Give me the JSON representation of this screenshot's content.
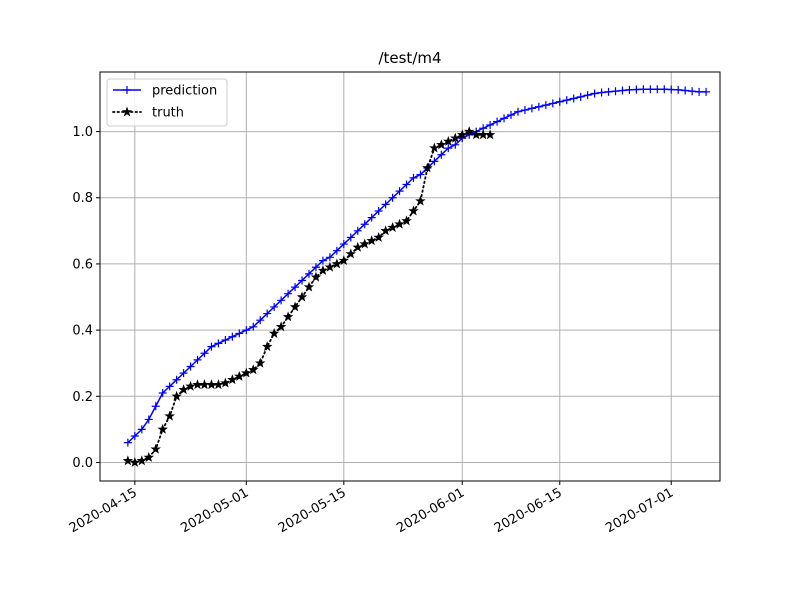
{
  "chart_data": {
    "type": "line",
    "title": "/test/m4",
    "xlabel": "",
    "ylabel": "",
    "x_type": "date",
    "xlim": [
      "2020-04-10",
      "2020-07-08"
    ],
    "ylim": [
      -0.056,
      1.18
    ],
    "x_ticks": [
      "2020-04-15",
      "2020-05-01",
      "2020-05-15",
      "2020-06-01",
      "2020-06-15",
      "2020-07-01"
    ],
    "y_ticks": [
      0.0,
      0.2,
      0.4,
      0.6,
      0.8,
      1.0
    ],
    "y_tick_labels": [
      "0.0",
      "0.2",
      "0.4",
      "0.6",
      "0.8",
      "1.0"
    ],
    "grid": true,
    "legend_position": "top-left",
    "series": [
      {
        "name": "prediction",
        "color": "#0000ff",
        "line_style": "solid",
        "marker": "plus",
        "x": [
          "2020-04-14",
          "2020-04-15",
          "2020-04-16",
          "2020-04-17",
          "2020-04-18",
          "2020-04-19",
          "2020-04-20",
          "2020-04-21",
          "2020-04-22",
          "2020-04-23",
          "2020-04-24",
          "2020-04-25",
          "2020-04-26",
          "2020-04-27",
          "2020-04-28",
          "2020-04-29",
          "2020-04-30",
          "2020-05-01",
          "2020-05-02",
          "2020-05-03",
          "2020-05-04",
          "2020-05-05",
          "2020-05-06",
          "2020-05-07",
          "2020-05-08",
          "2020-05-09",
          "2020-05-10",
          "2020-05-11",
          "2020-05-12",
          "2020-05-13",
          "2020-05-14",
          "2020-05-15",
          "2020-05-16",
          "2020-05-17",
          "2020-05-18",
          "2020-05-19",
          "2020-05-20",
          "2020-05-21",
          "2020-05-22",
          "2020-05-23",
          "2020-05-24",
          "2020-05-25",
          "2020-05-26",
          "2020-05-27",
          "2020-05-28",
          "2020-05-29",
          "2020-05-30",
          "2020-05-31",
          "2020-06-01",
          "2020-06-02",
          "2020-06-03",
          "2020-06-04",
          "2020-06-05",
          "2020-06-06",
          "2020-06-07",
          "2020-06-08",
          "2020-06-09",
          "2020-06-10",
          "2020-06-11",
          "2020-06-12",
          "2020-06-13",
          "2020-06-14",
          "2020-06-15",
          "2020-06-16",
          "2020-06-17",
          "2020-06-18",
          "2020-06-19",
          "2020-06-20",
          "2020-06-21",
          "2020-06-22",
          "2020-06-23",
          "2020-06-24",
          "2020-06-25",
          "2020-06-26",
          "2020-06-27",
          "2020-06-28",
          "2020-06-29",
          "2020-06-30",
          "2020-07-01",
          "2020-07-02",
          "2020-07-03",
          "2020-07-04",
          "2020-07-05",
          "2020-07-06"
        ],
        "values": [
          0.06,
          0.08,
          0.1,
          0.13,
          0.17,
          0.21,
          0.23,
          0.25,
          0.27,
          0.29,
          0.31,
          0.33,
          0.35,
          0.36,
          0.37,
          0.38,
          0.39,
          0.4,
          0.41,
          0.43,
          0.45,
          0.47,
          0.49,
          0.51,
          0.53,
          0.55,
          0.57,
          0.59,
          0.61,
          0.62,
          0.64,
          0.66,
          0.68,
          0.7,
          0.72,
          0.74,
          0.76,
          0.78,
          0.8,
          0.82,
          0.84,
          0.86,
          0.87,
          0.89,
          0.91,
          0.93,
          0.95,
          0.96,
          0.98,
          0.99,
          1.0,
          1.01,
          1.02,
          1.03,
          1.04,
          1.05,
          1.06,
          1.065,
          1.07,
          1.075,
          1.08,
          1.085,
          1.09,
          1.095,
          1.1,
          1.105,
          1.11,
          1.115,
          1.118,
          1.12,
          1.122,
          1.124,
          1.126,
          1.127,
          1.128,
          1.128,
          1.128,
          1.128,
          1.127,
          1.126,
          1.124,
          1.122,
          1.12,
          1.12
        ]
      },
      {
        "name": "truth",
        "color": "#000000",
        "line_style": "dotted",
        "marker": "star",
        "x": [
          "2020-04-14",
          "2020-04-15",
          "2020-04-16",
          "2020-04-17",
          "2020-04-18",
          "2020-04-19",
          "2020-04-20",
          "2020-04-21",
          "2020-04-22",
          "2020-04-23",
          "2020-04-24",
          "2020-04-25",
          "2020-04-26",
          "2020-04-27",
          "2020-04-28",
          "2020-04-29",
          "2020-04-30",
          "2020-05-01",
          "2020-05-02",
          "2020-05-03",
          "2020-05-04",
          "2020-05-05",
          "2020-05-06",
          "2020-05-07",
          "2020-05-08",
          "2020-05-09",
          "2020-05-10",
          "2020-05-11",
          "2020-05-12",
          "2020-05-13",
          "2020-05-14",
          "2020-05-15",
          "2020-05-16",
          "2020-05-17",
          "2020-05-18",
          "2020-05-19",
          "2020-05-20",
          "2020-05-21",
          "2020-05-22",
          "2020-05-23",
          "2020-05-24",
          "2020-05-25",
          "2020-05-26",
          "2020-05-27",
          "2020-05-28",
          "2020-05-29",
          "2020-05-30",
          "2020-05-31",
          "2020-06-01",
          "2020-06-02",
          "2020-06-03",
          "2020-06-04",
          "2020-06-05"
        ],
        "values": [
          0.005,
          0.0,
          0.005,
          0.015,
          0.04,
          0.1,
          0.14,
          0.2,
          0.22,
          0.23,
          0.235,
          0.235,
          0.235,
          0.235,
          0.24,
          0.25,
          0.26,
          0.27,
          0.28,
          0.3,
          0.35,
          0.39,
          0.41,
          0.44,
          0.47,
          0.5,
          0.53,
          0.56,
          0.58,
          0.59,
          0.6,
          0.61,
          0.63,
          0.65,
          0.66,
          0.67,
          0.68,
          0.7,
          0.71,
          0.72,
          0.73,
          0.76,
          0.79,
          0.89,
          0.95,
          0.96,
          0.97,
          0.98,
          0.99,
          1.0,
          0.99,
          0.99,
          0.99
        ]
      }
    ]
  }
}
